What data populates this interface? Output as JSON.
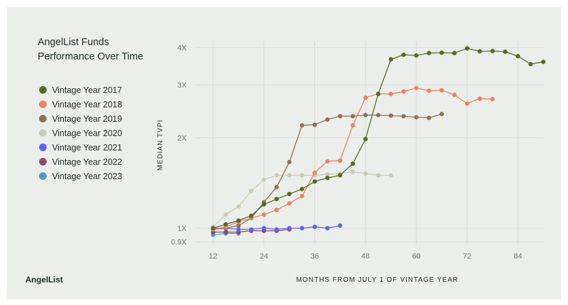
{
  "title_lines": [
    "AngelList Funds",
    "Performance Over Time"
  ],
  "brand": "AngelList",
  "chart_data": {
    "type": "line",
    "xlabel": "MONTHS FROM JULY 1 OF VINTAGE YEAR",
    "ylabel": "MEDIAN TVPI",
    "xlim": [
      8,
      90
    ],
    "ylim": [
      0.88,
      4.2
    ],
    "y_scale": "log",
    "x_ticks": [
      12,
      24,
      36,
      48,
      60,
      72,
      84
    ],
    "x_tick_labels": [
      "12",
      "24",
      "36",
      "48",
      "60",
      "72",
      "84"
    ],
    "y_ticks": [
      0.9,
      1,
      2,
      3,
      4
    ],
    "y_tick_labels": [
      "0.9X",
      "1X",
      "2X",
      "3X",
      "4X"
    ],
    "grid": true,
    "legend_position": "left",
    "series": [
      {
        "name": "Vintage Year 2017",
        "color": "#556b24",
        "x": [
          12,
          15,
          18,
          21,
          24,
          27,
          30,
          33,
          36,
          39,
          42,
          45,
          48,
          51,
          54,
          57,
          60,
          63,
          66,
          69,
          72,
          75,
          78,
          81,
          84,
          87,
          90
        ],
        "y": [
          1.0,
          1.03,
          1.06,
          1.1,
          1.2,
          1.25,
          1.3,
          1.35,
          1.43,
          1.47,
          1.5,
          1.64,
          1.98,
          2.8,
          3.65,
          3.78,
          3.76,
          3.83,
          3.84,
          3.83,
          3.97,
          3.88,
          3.89,
          3.87,
          3.74,
          3.52,
          3.58
        ]
      },
      {
        "name": "Vintage Year 2018",
        "color": "#f07f63",
        "x": [
          12,
          15,
          18,
          21,
          24,
          27,
          30,
          33,
          36,
          39,
          42,
          45,
          48,
          51,
          54,
          57,
          60,
          63,
          66,
          69,
          72,
          75,
          78
        ],
        "y": [
          0.99,
          1.01,
          1.05,
          1.08,
          1.11,
          1.15,
          1.21,
          1.28,
          1.53,
          1.67,
          1.68,
          2.2,
          2.72,
          2.8,
          2.8,
          2.85,
          2.93,
          2.87,
          2.88,
          2.78,
          2.6,
          2.7,
          2.69
        ]
      },
      {
        "name": "Vintage Year 2019",
        "color": "#8b7254",
        "x": [
          12,
          15,
          18,
          21,
          24,
          27,
          30,
          33,
          36,
          39,
          42,
          45,
          48,
          51,
          54,
          57,
          60,
          63,
          66
        ],
        "y": [
          1.0,
          1.0,
          1.02,
          1.08,
          1.22,
          1.37,
          1.66,
          2.2,
          2.21,
          2.3,
          2.36,
          2.36,
          2.38,
          2.38,
          2.37,
          2.36,
          2.34,
          2.33,
          2.4
        ]
      },
      {
        "name": "Vintage Year 2020",
        "color": "#c7cdb8",
        "x": [
          12,
          15,
          18,
          21,
          24,
          27,
          30,
          33,
          36,
          39,
          42,
          45,
          48,
          51,
          54
        ],
        "y": [
          1.01,
          1.11,
          1.18,
          1.33,
          1.45,
          1.5,
          1.5,
          1.5,
          1.5,
          1.51,
          1.52,
          1.54,
          1.52,
          1.5,
          1.5
        ]
      },
      {
        "name": "Vintage Year 2021",
        "color": "#6161f2",
        "x": [
          12,
          15,
          18,
          21,
          24,
          27,
          30,
          33,
          36,
          39,
          42
        ],
        "y": [
          0.99,
          1.0,
          0.99,
          0.99,
          1.0,
          0.99,
          1.0,
          1.0,
          1.01,
          1.0,
          1.02
        ]
      },
      {
        "name": "Vintage Year 2022",
        "color": "#884a66",
        "x": [
          12,
          15,
          18,
          21,
          24,
          27,
          30
        ],
        "y": [
          0.97,
          0.97,
          0.97,
          0.98,
          0.98,
          0.98,
          0.99
        ]
      },
      {
        "name": "Vintage Year 2023",
        "color": "#4e99d2",
        "x": [
          12,
          15,
          18
        ],
        "y": [
          0.95,
          0.96,
          0.96
        ]
      }
    ]
  }
}
